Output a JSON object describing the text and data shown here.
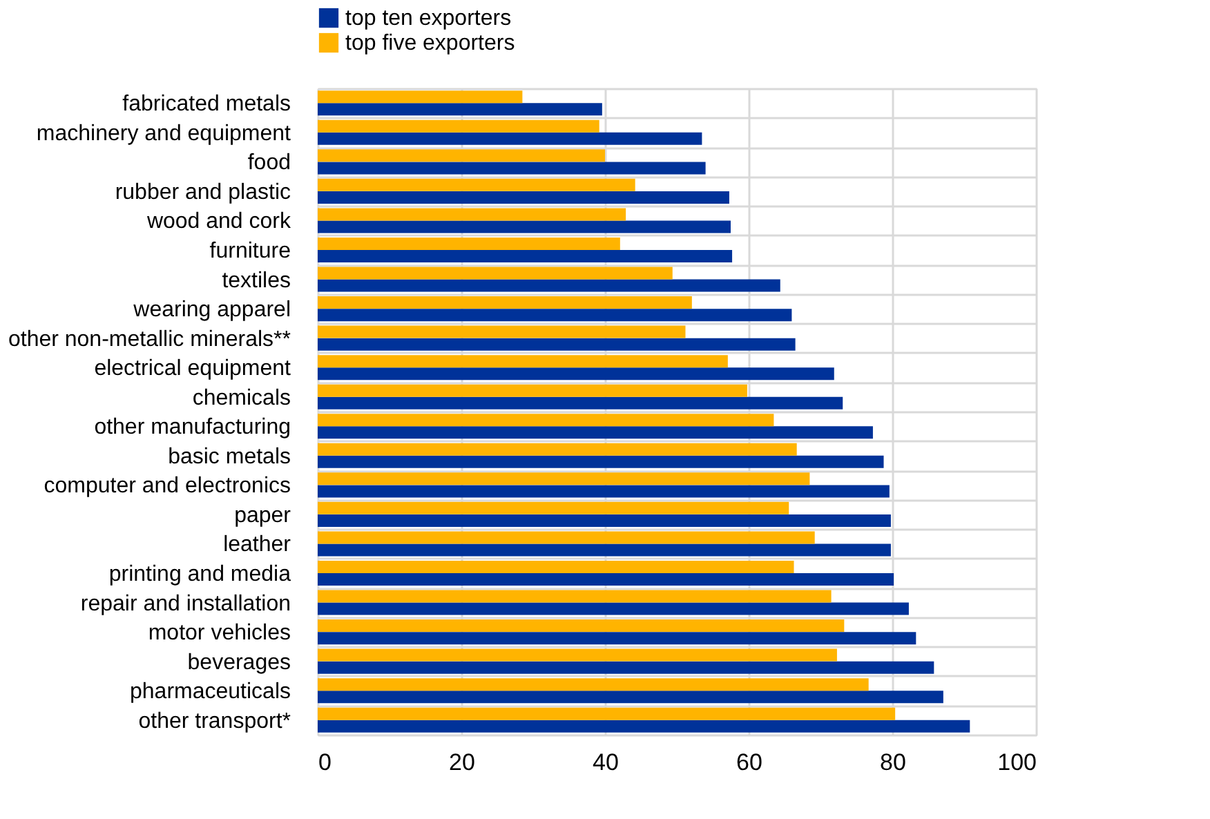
{
  "chart_data": {
    "type": "bar",
    "orientation": "horizontal",
    "categories": [
      "fabricated metals",
      "machinery and equipment",
      "food",
      "rubber and plastic",
      "wood and cork",
      "furniture",
      "textiles",
      "wearing apparel",
      "other non-metallic minerals**",
      "electrical equipment",
      "chemicals",
      "other manufacturing",
      "basic metals",
      "computer and electronics",
      "paper",
      "leather",
      "printing and media",
      "repair and installation",
      "motor vehicles",
      "beverages",
      "pharmaceuticals",
      "other transport*"
    ],
    "series": [
      {
        "name": "top ten exporters",
        "color": "#003299",
        "values": [
          39.6,
          53.5,
          54,
          57.3,
          57.5,
          57.7,
          64.4,
          66,
          66.5,
          71.9,
          73.1,
          77.3,
          78.8,
          79.6,
          79.8,
          79.8,
          80.2,
          82.3,
          83.3,
          85.8,
          87.1,
          90.8
        ]
      },
      {
        "name": "top five exporters",
        "color": "#ffb400",
        "values": [
          28.5,
          39.2,
          40,
          44.2,
          42.9,
          42.1,
          49.4,
          52.1,
          51.2,
          57.1,
          59.8,
          63.5,
          66.7,
          68.5,
          65.6,
          69.2,
          66.3,
          71.5,
          73.3,
          72.3,
          76.7,
          80.4
        ]
      }
    ],
    "xlim": [
      0,
      100
    ],
    "xticks": [
      0,
      20,
      40,
      60,
      80,
      100
    ],
    "grid": true,
    "legend": "top"
  }
}
